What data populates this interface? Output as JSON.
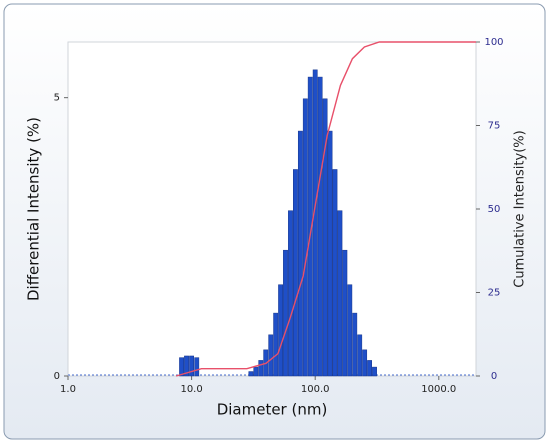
{
  "chart_data": {
    "type": "bar",
    "xlabel": "Diameter (nm)",
    "ylabel": "Differential Intensity (%)",
    "y2label": "Cumulative Intensity(%)",
    "xscale": "log",
    "xlim": [
      1,
      2000
    ],
    "xticks": [
      {
        "value": 1,
        "label": "1.0"
      },
      {
        "value": 10,
        "label": "10.0"
      },
      {
        "value": 100,
        "label": "100.0"
      },
      {
        "value": 1000,
        "label": "1000.0"
      }
    ],
    "ylim": [
      0,
      6
    ],
    "yticks": [
      0,
      5
    ],
    "y2lim": [
      0,
      100
    ],
    "y2ticks": [
      0,
      25,
      50,
      75,
      100
    ],
    "series": [
      {
        "type": "bar",
        "color": "#1f4fc8",
        "x": [
          8.3,
          9.1,
          10.0,
          11.0,
          30.2,
          33.1,
          36.3,
          39.8,
          43.7,
          47.9,
          52.5,
          57.5,
          63.1,
          69.2,
          75.9,
          83.2,
          91.2,
          100,
          109.6,
          120.2,
          131.8,
          144.5,
          158.5,
          173.8,
          190.5,
          208.9,
          229.1,
          251.2,
          275.4,
          302.0
        ],
        "values": [
          0.33,
          0.36,
          0.36,
          0.33,
          0.08,
          0.16,
          0.28,
          0.47,
          0.74,
          1.13,
          1.64,
          2.26,
          2.97,
          3.71,
          4.4,
          4.98,
          5.37,
          5.5,
          5.37,
          4.98,
          4.4,
          3.71,
          2.97,
          2.26,
          1.64,
          1.13,
          0.74,
          0.47,
          0.28,
          0.16
        ]
      },
      {
        "type": "line",
        "color": "#e8506a",
        "axis": "y2",
        "x": [
          7.5,
          12,
          28,
          40,
          50,
          63,
          80,
          100,
          125,
          160,
          200,
          250,
          330,
          2000
        ],
        "values": [
          0,
          2.2,
          2.2,
          3.8,
          6.7,
          17.6,
          30,
          51,
          72,
          87,
          95,
          98.5,
          100,
          100
        ]
      }
    ]
  }
}
